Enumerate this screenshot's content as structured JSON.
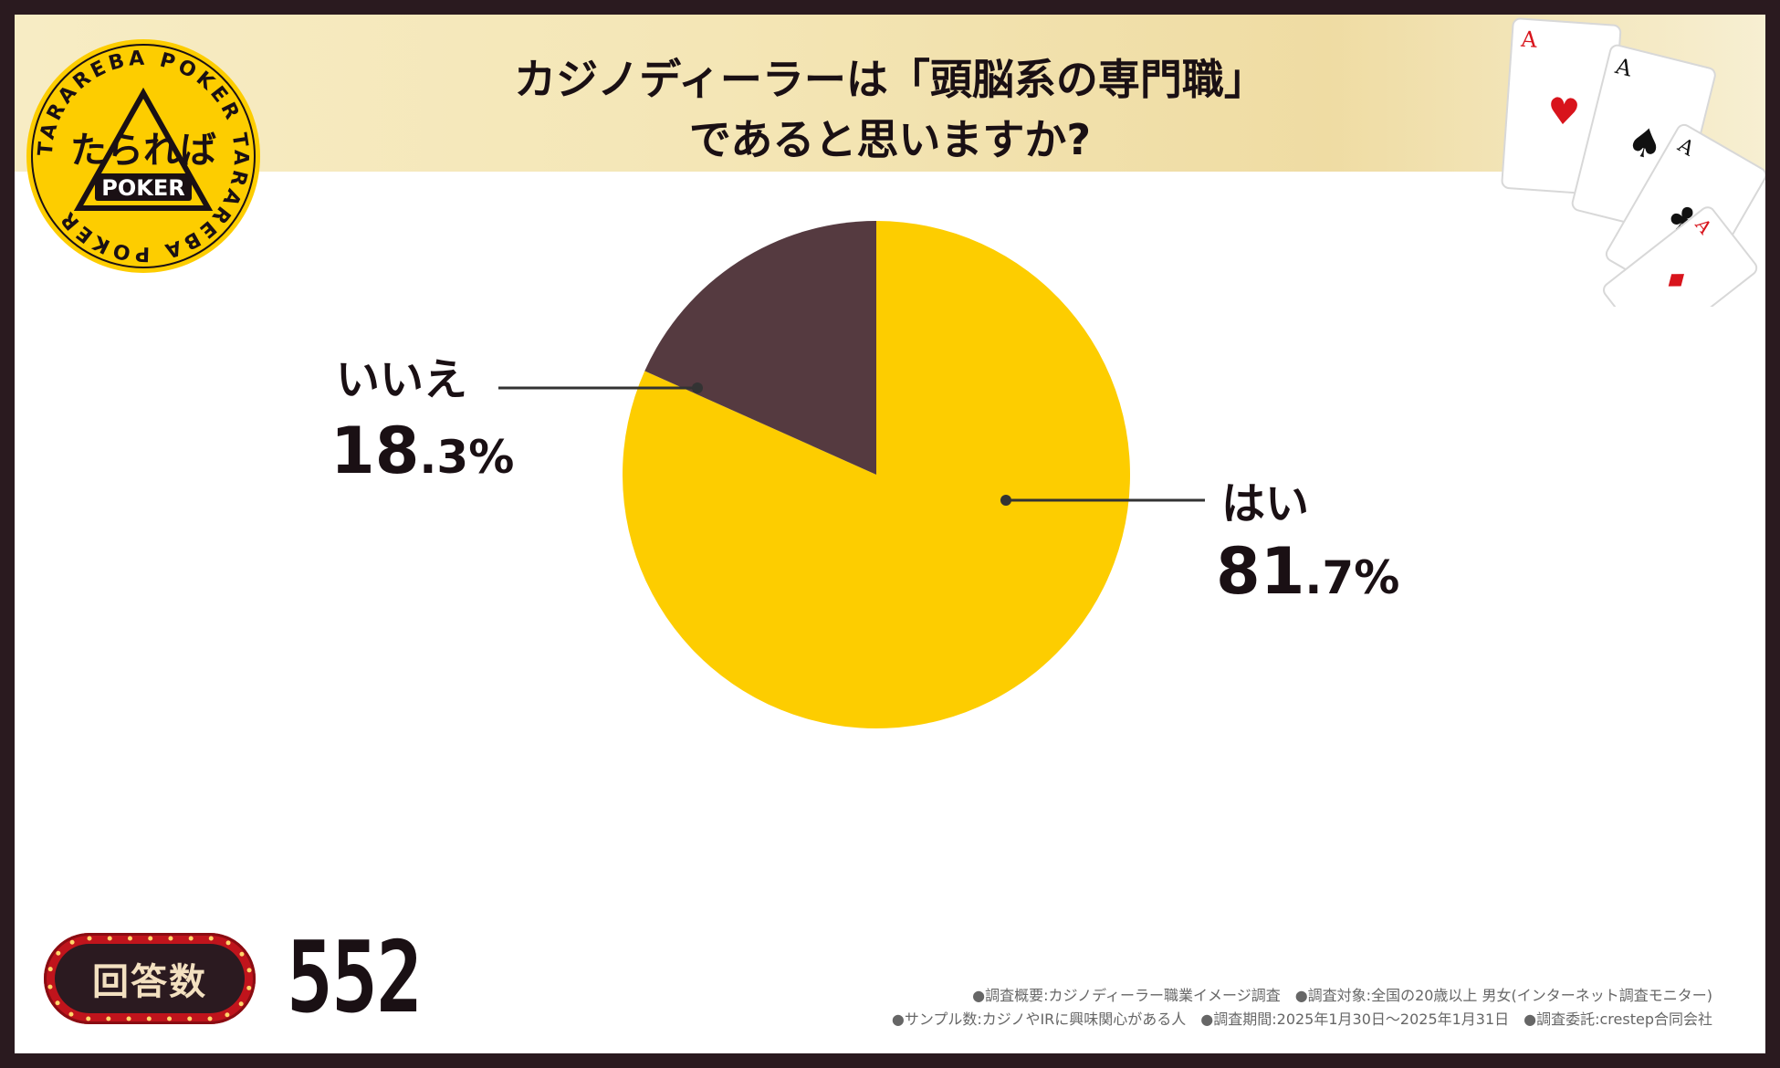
{
  "header": {
    "title_line1": "カジノディーラーは「頭脳系の専門職」",
    "title_line2": "であると思いますか?"
  },
  "logo": {
    "main_text": "たられば",
    "sub_text": "POKER",
    "ring_text": "TARAREBA POKER TARAREBA POKER"
  },
  "chart_data": {
    "type": "pie",
    "title": "カジノディーラーは「頭脳系の専門職」であると思いますか?",
    "slices": [
      {
        "label": "はい",
        "value": 81.7,
        "value_int": "81",
        "value_dec": ".7%",
        "color": "#FDCD00"
      },
      {
        "label": "いいえ",
        "value": 18.3,
        "value_int": "18",
        "value_dec": ".3%",
        "color": "#553A40"
      }
    ],
    "start_angle_deg": 0,
    "direction": "clockwise"
  },
  "responses": {
    "label": "回答数",
    "count": "552"
  },
  "notes": {
    "line1": "●調査概要:カジノディーラー職業イメージ調査　●調査対象:全国の20歳以上 男女(インターネット調査モニター)",
    "line2": "●サンプル数:カジノやIRに興味関心がある人　●調査期間:2025年1月30日～2025年1月31日　●調査委託:crestep合同会社"
  },
  "colors": {
    "background_frame": "#2a1a1f",
    "header_gold": "#f4e6b6",
    "logo_yellow": "#FDCD00",
    "badge_red": "#c0141c"
  }
}
